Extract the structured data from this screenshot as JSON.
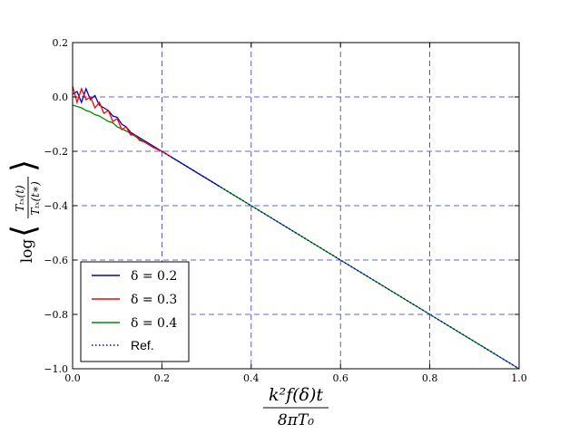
{
  "chart_data": {
    "type": "line",
    "title": "",
    "xlabel": {
      "numerator": "k²f(δ)t",
      "denominator": "8πT₀"
    },
    "ylabel": {
      "prefix": "log",
      "numerator": "Tₜₓ(t)",
      "denominator": "Tₜₓ(t∗)"
    },
    "xlim": [
      0.0,
      1.0
    ],
    "ylim": [
      -1.0,
      0.2
    ],
    "xticks": [
      "0.0",
      "0.2",
      "0.4",
      "0.6",
      "0.8",
      "1.0"
    ],
    "yticks": [
      "0.2",
      "0.0",
      "−0.2",
      "−0.4",
      "−0.6",
      "−0.8",
      "−1.0"
    ],
    "grid": true,
    "legend_position": "lower-left",
    "series": [
      {
        "name": "δ = 0.2",
        "color": "#0000cc",
        "style": "solid",
        "x": [
          0.0,
          0.01,
          0.02,
          0.03,
          0.04,
          0.05,
          0.06,
          0.07,
          0.08,
          0.09,
          0.1,
          0.11,
          0.12,
          0.13,
          0.14,
          0.15,
          0.16,
          0.17,
          0.18,
          0.2,
          0.25,
          0.3,
          0.33
        ],
        "y": [
          0.01,
          0.02,
          -0.02,
          0.03,
          -0.01,
          0.005,
          -0.03,
          -0.04,
          -0.05,
          -0.07,
          -0.075,
          -0.1,
          -0.11,
          -0.13,
          -0.14,
          -0.15,
          -0.16,
          -0.17,
          -0.18,
          -0.2,
          -0.25,
          -0.3,
          -0.33
        ]
      },
      {
        "name": "δ = 0.3",
        "color": "#ff0000",
        "style": "solid",
        "x": [
          0.0,
          0.01,
          0.02,
          0.03,
          0.04,
          0.05,
          0.06,
          0.07,
          0.08,
          0.09,
          0.1,
          0.11,
          0.12,
          0.13,
          0.14,
          0.15,
          0.16,
          0.17,
          0.18,
          0.2,
          0.22
        ],
        "y": [
          0.04,
          -0.02,
          0.03,
          -0.01,
          0.0,
          -0.04,
          -0.02,
          -0.06,
          -0.05,
          -0.09,
          -0.08,
          -0.12,
          -0.11,
          -0.14,
          -0.14,
          -0.16,
          -0.165,
          -0.175,
          -0.185,
          -0.2,
          -0.22
        ]
      },
      {
        "name": "δ = 0.4",
        "color": "#008800",
        "style": "solid",
        "x": [
          0.0,
          0.01,
          0.02,
          0.03,
          0.04,
          0.05,
          0.06,
          0.07,
          0.08,
          0.09,
          0.1,
          0.12,
          0.14,
          0.16,
          0.18,
          0.2,
          0.3,
          0.4,
          0.5,
          0.6,
          0.7,
          0.8,
          0.9,
          1.0
        ],
        "y": [
          -0.03,
          -0.035,
          -0.04,
          -0.05,
          -0.055,
          -0.065,
          -0.07,
          -0.08,
          -0.09,
          -0.095,
          -0.11,
          -0.125,
          -0.145,
          -0.165,
          -0.185,
          -0.2,
          -0.3,
          -0.4,
          -0.5,
          -0.6,
          -0.7,
          -0.8,
          -0.9,
          -1.0
        ]
      },
      {
        "name": "Ref.",
        "color": "#0000cc",
        "style": "dotted",
        "x": [
          0.2,
          1.0
        ],
        "y": [
          -0.2,
          -1.0
        ]
      }
    ]
  }
}
